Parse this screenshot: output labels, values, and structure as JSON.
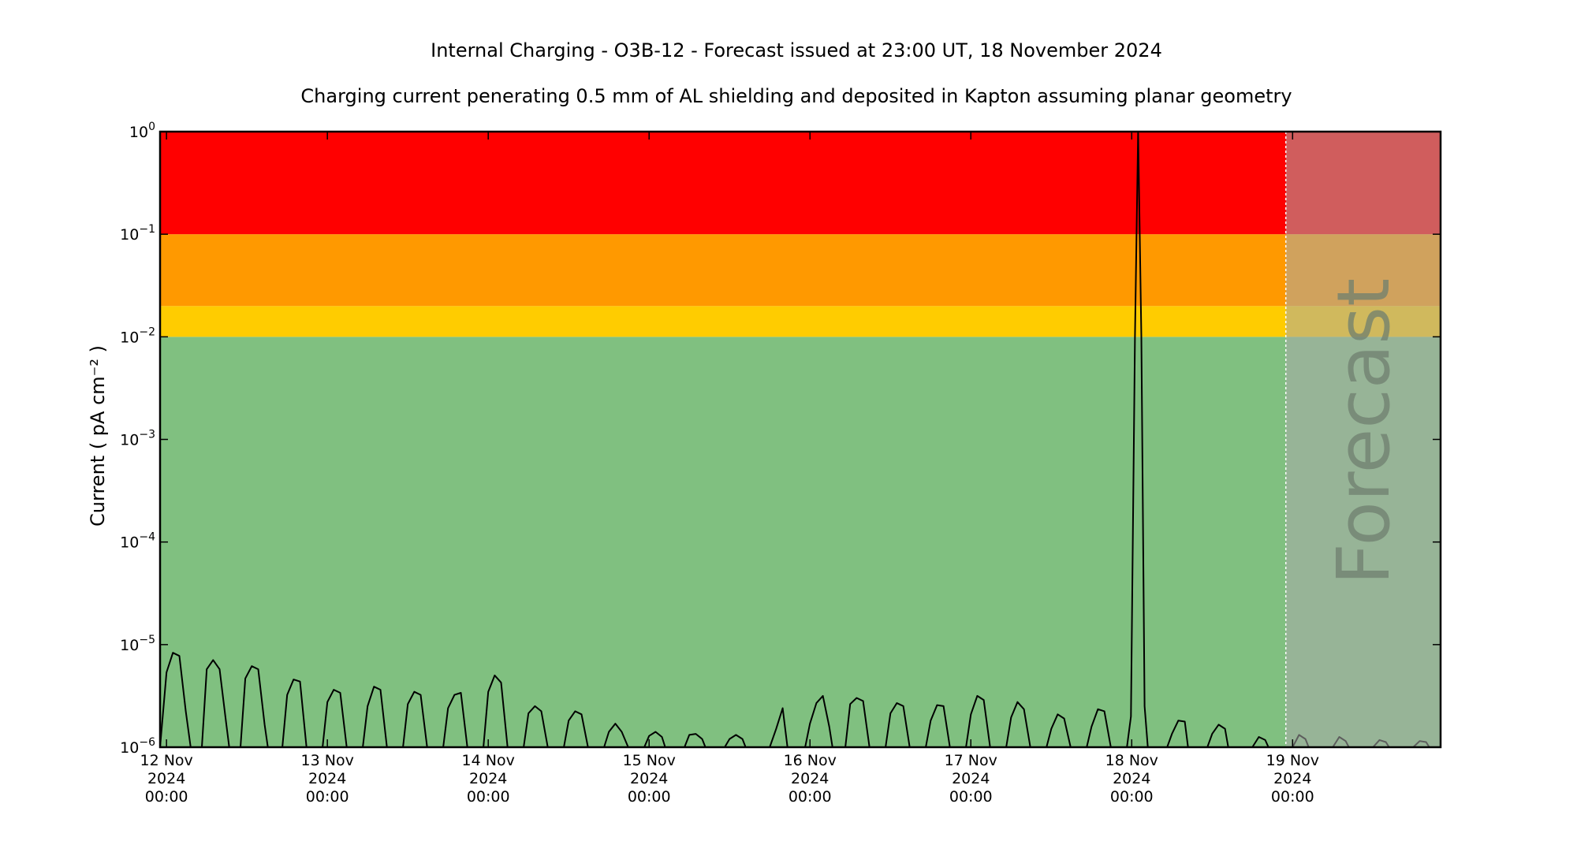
{
  "chart_data": {
    "type": "line",
    "title": "Internal Charging - O3B-12 - Forecast issued at 23:00 UT, 18 November 2024",
    "subtitle": "Charging current penerating 0.5 mm of AL shielding and deposited in Kapton assuming planar geometry",
    "ylabel": "Current ( pA cm⁻² )",
    "xlabel": "",
    "y_scale": "log",
    "ylim_exponent": [
      -6,
      0
    ],
    "y_ticks": [
      {
        "base": "10",
        "exp": "−6"
      },
      {
        "base": "10",
        "exp": "−5"
      },
      {
        "base": "10",
        "exp": "−4"
      },
      {
        "base": "10",
        "exp": "−3"
      },
      {
        "base": "10",
        "exp": "−2"
      },
      {
        "base": "10",
        "exp": "−1"
      },
      {
        "base": "10",
        "exp": "0"
      }
    ],
    "x_range_days_from_12nov": [
      -0.04,
      7.92
    ],
    "x_ticks": [
      {
        "day": 0,
        "lines": [
          "12 Nov",
          "2024",
          "00:00"
        ]
      },
      {
        "day": 1,
        "lines": [
          "13 Nov",
          "2024",
          "00:00"
        ]
      },
      {
        "day": 2,
        "lines": [
          "14 Nov",
          "2024",
          "00:00"
        ]
      },
      {
        "day": 3,
        "lines": [
          "15 Nov",
          "2024",
          "00:00"
        ]
      },
      {
        "day": 4,
        "lines": [
          "16 Nov",
          "2024",
          "00:00"
        ]
      },
      {
        "day": 5,
        "lines": [
          "17 Nov",
          "2024",
          "00:00"
        ]
      },
      {
        "day": 6,
        "lines": [
          "18 Nov",
          "2024",
          "00:00"
        ]
      },
      {
        "day": 7,
        "lines": [
          "19 Nov",
          "2024",
          "00:00"
        ]
      }
    ],
    "bands": [
      {
        "from_exp": -6,
        "to_exp": -2,
        "color": "#80c080"
      },
      {
        "from_exp": -2,
        "to_exp": -1.7,
        "color": "#ffcc00"
      },
      {
        "from_exp": -1.7,
        "to_exp": -1,
        "color": "#ff9900"
      },
      {
        "from_exp": -1,
        "to_exp": 0,
        "color": "#ff0000"
      }
    ],
    "forecast": {
      "start_day": 6.958,
      "label": "Forecast",
      "overlay_color": "#a9a9a9",
      "overlay_opacity": 0.55
    },
    "series": [
      {
        "color": "#000000",
        "points": [
          [
            -0.04,
            -6.0
          ],
          [
            0.0,
            -5.27
          ],
          [
            0.04,
            -5.08
          ],
          [
            0.08,
            -5.11
          ],
          [
            0.12,
            -5.65
          ],
          [
            0.15,
            -6.0
          ],
          [
            0.22,
            -6.0
          ],
          [
            0.25,
            -5.24
          ],
          [
            0.29,
            -5.15
          ],
          [
            0.33,
            -5.24
          ],
          [
            0.37,
            -5.75
          ],
          [
            0.39,
            -6.0
          ],
          [
            0.46,
            -6.0
          ],
          [
            0.49,
            -5.33
          ],
          [
            0.53,
            -5.21
          ],
          [
            0.57,
            -5.24
          ],
          [
            0.61,
            -5.78
          ],
          [
            0.63,
            -6.0
          ],
          [
            0.72,
            -6.0
          ],
          [
            0.75,
            -5.49
          ],
          [
            0.79,
            -5.34
          ],
          [
            0.83,
            -5.36
          ],
          [
            0.87,
            -6.0
          ],
          [
            0.97,
            -6.0
          ],
          [
            1.0,
            -5.56
          ],
          [
            1.04,
            -5.44
          ],
          [
            1.08,
            -5.47
          ],
          [
            1.12,
            -6.0
          ],
          [
            1.22,
            -6.0
          ],
          [
            1.25,
            -5.6
          ],
          [
            1.29,
            -5.41
          ],
          [
            1.33,
            -5.44
          ],
          [
            1.37,
            -6.0
          ],
          [
            1.47,
            -6.0
          ],
          [
            1.5,
            -5.58
          ],
          [
            1.54,
            -5.46
          ],
          [
            1.58,
            -5.49
          ],
          [
            1.62,
            -6.0
          ],
          [
            1.72,
            -6.0
          ],
          [
            1.75,
            -5.62
          ],
          [
            1.79,
            -5.49
          ],
          [
            1.83,
            -5.47
          ],
          [
            1.87,
            -6.0
          ],
          [
            1.97,
            -6.0
          ],
          [
            2.0,
            -5.46
          ],
          [
            2.04,
            -5.3
          ],
          [
            2.08,
            -5.37
          ],
          [
            2.12,
            -6.0
          ],
          [
            2.22,
            -6.0
          ],
          [
            2.25,
            -5.67
          ],
          [
            2.29,
            -5.6
          ],
          [
            2.33,
            -5.65
          ],
          [
            2.37,
            -6.0
          ],
          [
            2.47,
            -6.0
          ],
          [
            2.5,
            -5.74
          ],
          [
            2.54,
            -5.65
          ],
          [
            2.58,
            -5.68
          ],
          [
            2.62,
            -6.0
          ],
          [
            2.72,
            -6.0
          ],
          [
            2.75,
            -5.85
          ],
          [
            2.79,
            -5.77
          ],
          [
            2.83,
            -5.85
          ],
          [
            2.87,
            -6.0
          ],
          [
            2.97,
            -6.0
          ],
          [
            3.0,
            -5.89
          ],
          [
            3.04,
            -5.85
          ],
          [
            3.08,
            -5.9
          ],
          [
            3.1,
            -6.0
          ],
          [
            3.22,
            -6.0
          ],
          [
            3.25,
            -5.88
          ],
          [
            3.29,
            -5.87
          ],
          [
            3.33,
            -5.92
          ],
          [
            3.35,
            -6.0
          ],
          [
            3.47,
            -6.0
          ],
          [
            3.5,
            -5.92
          ],
          [
            3.54,
            -5.88
          ],
          [
            3.58,
            -5.92
          ],
          [
            3.6,
            -6.0
          ],
          [
            3.75,
            -6.0
          ],
          [
            3.79,
            -5.82
          ],
          [
            3.83,
            -5.62
          ],
          [
            3.86,
            -6.0
          ],
          [
            3.97,
            -6.0
          ],
          [
            4.0,
            -5.77
          ],
          [
            4.04,
            -5.57
          ],
          [
            4.08,
            -5.5
          ],
          [
            4.12,
            -5.8
          ],
          [
            4.14,
            -6.0
          ],
          [
            4.22,
            -6.0
          ],
          [
            4.25,
            -5.58
          ],
          [
            4.29,
            -5.52
          ],
          [
            4.33,
            -5.55
          ],
          [
            4.37,
            -6.0
          ],
          [
            4.47,
            -6.0
          ],
          [
            4.5,
            -5.67
          ],
          [
            4.54,
            -5.57
          ],
          [
            4.58,
            -5.6
          ],
          [
            4.62,
            -6.0
          ],
          [
            4.72,
            -6.0
          ],
          [
            4.75,
            -5.74
          ],
          [
            4.79,
            -5.59
          ],
          [
            4.83,
            -5.6
          ],
          [
            4.87,
            -6.0
          ],
          [
            4.97,
            -6.0
          ],
          [
            5.0,
            -5.68
          ],
          [
            5.04,
            -5.5
          ],
          [
            5.08,
            -5.54
          ],
          [
            5.12,
            -6.0
          ],
          [
            5.22,
            -6.0
          ],
          [
            5.25,
            -5.71
          ],
          [
            5.29,
            -5.56
          ],
          [
            5.33,
            -5.63
          ],
          [
            5.37,
            -6.0
          ],
          [
            5.47,
            -6.0
          ],
          [
            5.5,
            -5.82
          ],
          [
            5.54,
            -5.68
          ],
          [
            5.58,
            -5.72
          ],
          [
            5.62,
            -6.0
          ],
          [
            5.72,
            -6.0
          ],
          [
            5.75,
            -5.8
          ],
          [
            5.79,
            -5.63
          ],
          [
            5.83,
            -5.65
          ],
          [
            5.87,
            -6.0
          ],
          [
            5.97,
            -6.0
          ],
          [
            5.995,
            -5.7
          ],
          [
            6.02,
            -2.0
          ],
          [
            6.04,
            0.0
          ],
          [
            6.06,
            -2.0
          ],
          [
            6.08,
            -5.6
          ],
          [
            6.1,
            -6.0
          ],
          [
            6.22,
            -6.0
          ],
          [
            6.25,
            -5.87
          ],
          [
            6.29,
            -5.74
          ],
          [
            6.33,
            -5.75
          ],
          [
            6.35,
            -6.0
          ],
          [
            6.47,
            -6.0
          ],
          [
            6.5,
            -5.87
          ],
          [
            6.54,
            -5.78
          ],
          [
            6.58,
            -5.82
          ],
          [
            6.6,
            -6.0
          ],
          [
            6.75,
            -6.0
          ],
          [
            6.79,
            -5.9
          ],
          [
            6.83,
            -5.93
          ],
          [
            6.85,
            -6.0
          ],
          [
            7.0,
            -6.0
          ],
          [
            7.04,
            -5.88
          ],
          [
            7.08,
            -5.92
          ],
          [
            7.1,
            -6.0
          ],
          [
            7.25,
            -6.0
          ],
          [
            7.29,
            -5.9
          ],
          [
            7.33,
            -5.94
          ],
          [
            7.35,
            -6.0
          ],
          [
            7.5,
            -6.0
          ],
          [
            7.54,
            -5.93
          ],
          [
            7.58,
            -5.95
          ],
          [
            7.6,
            -6.0
          ],
          [
            7.75,
            -6.0
          ],
          [
            7.79,
            -5.94
          ],
          [
            7.83,
            -5.95
          ],
          [
            7.85,
            -6.0
          ]
        ]
      }
    ]
  }
}
